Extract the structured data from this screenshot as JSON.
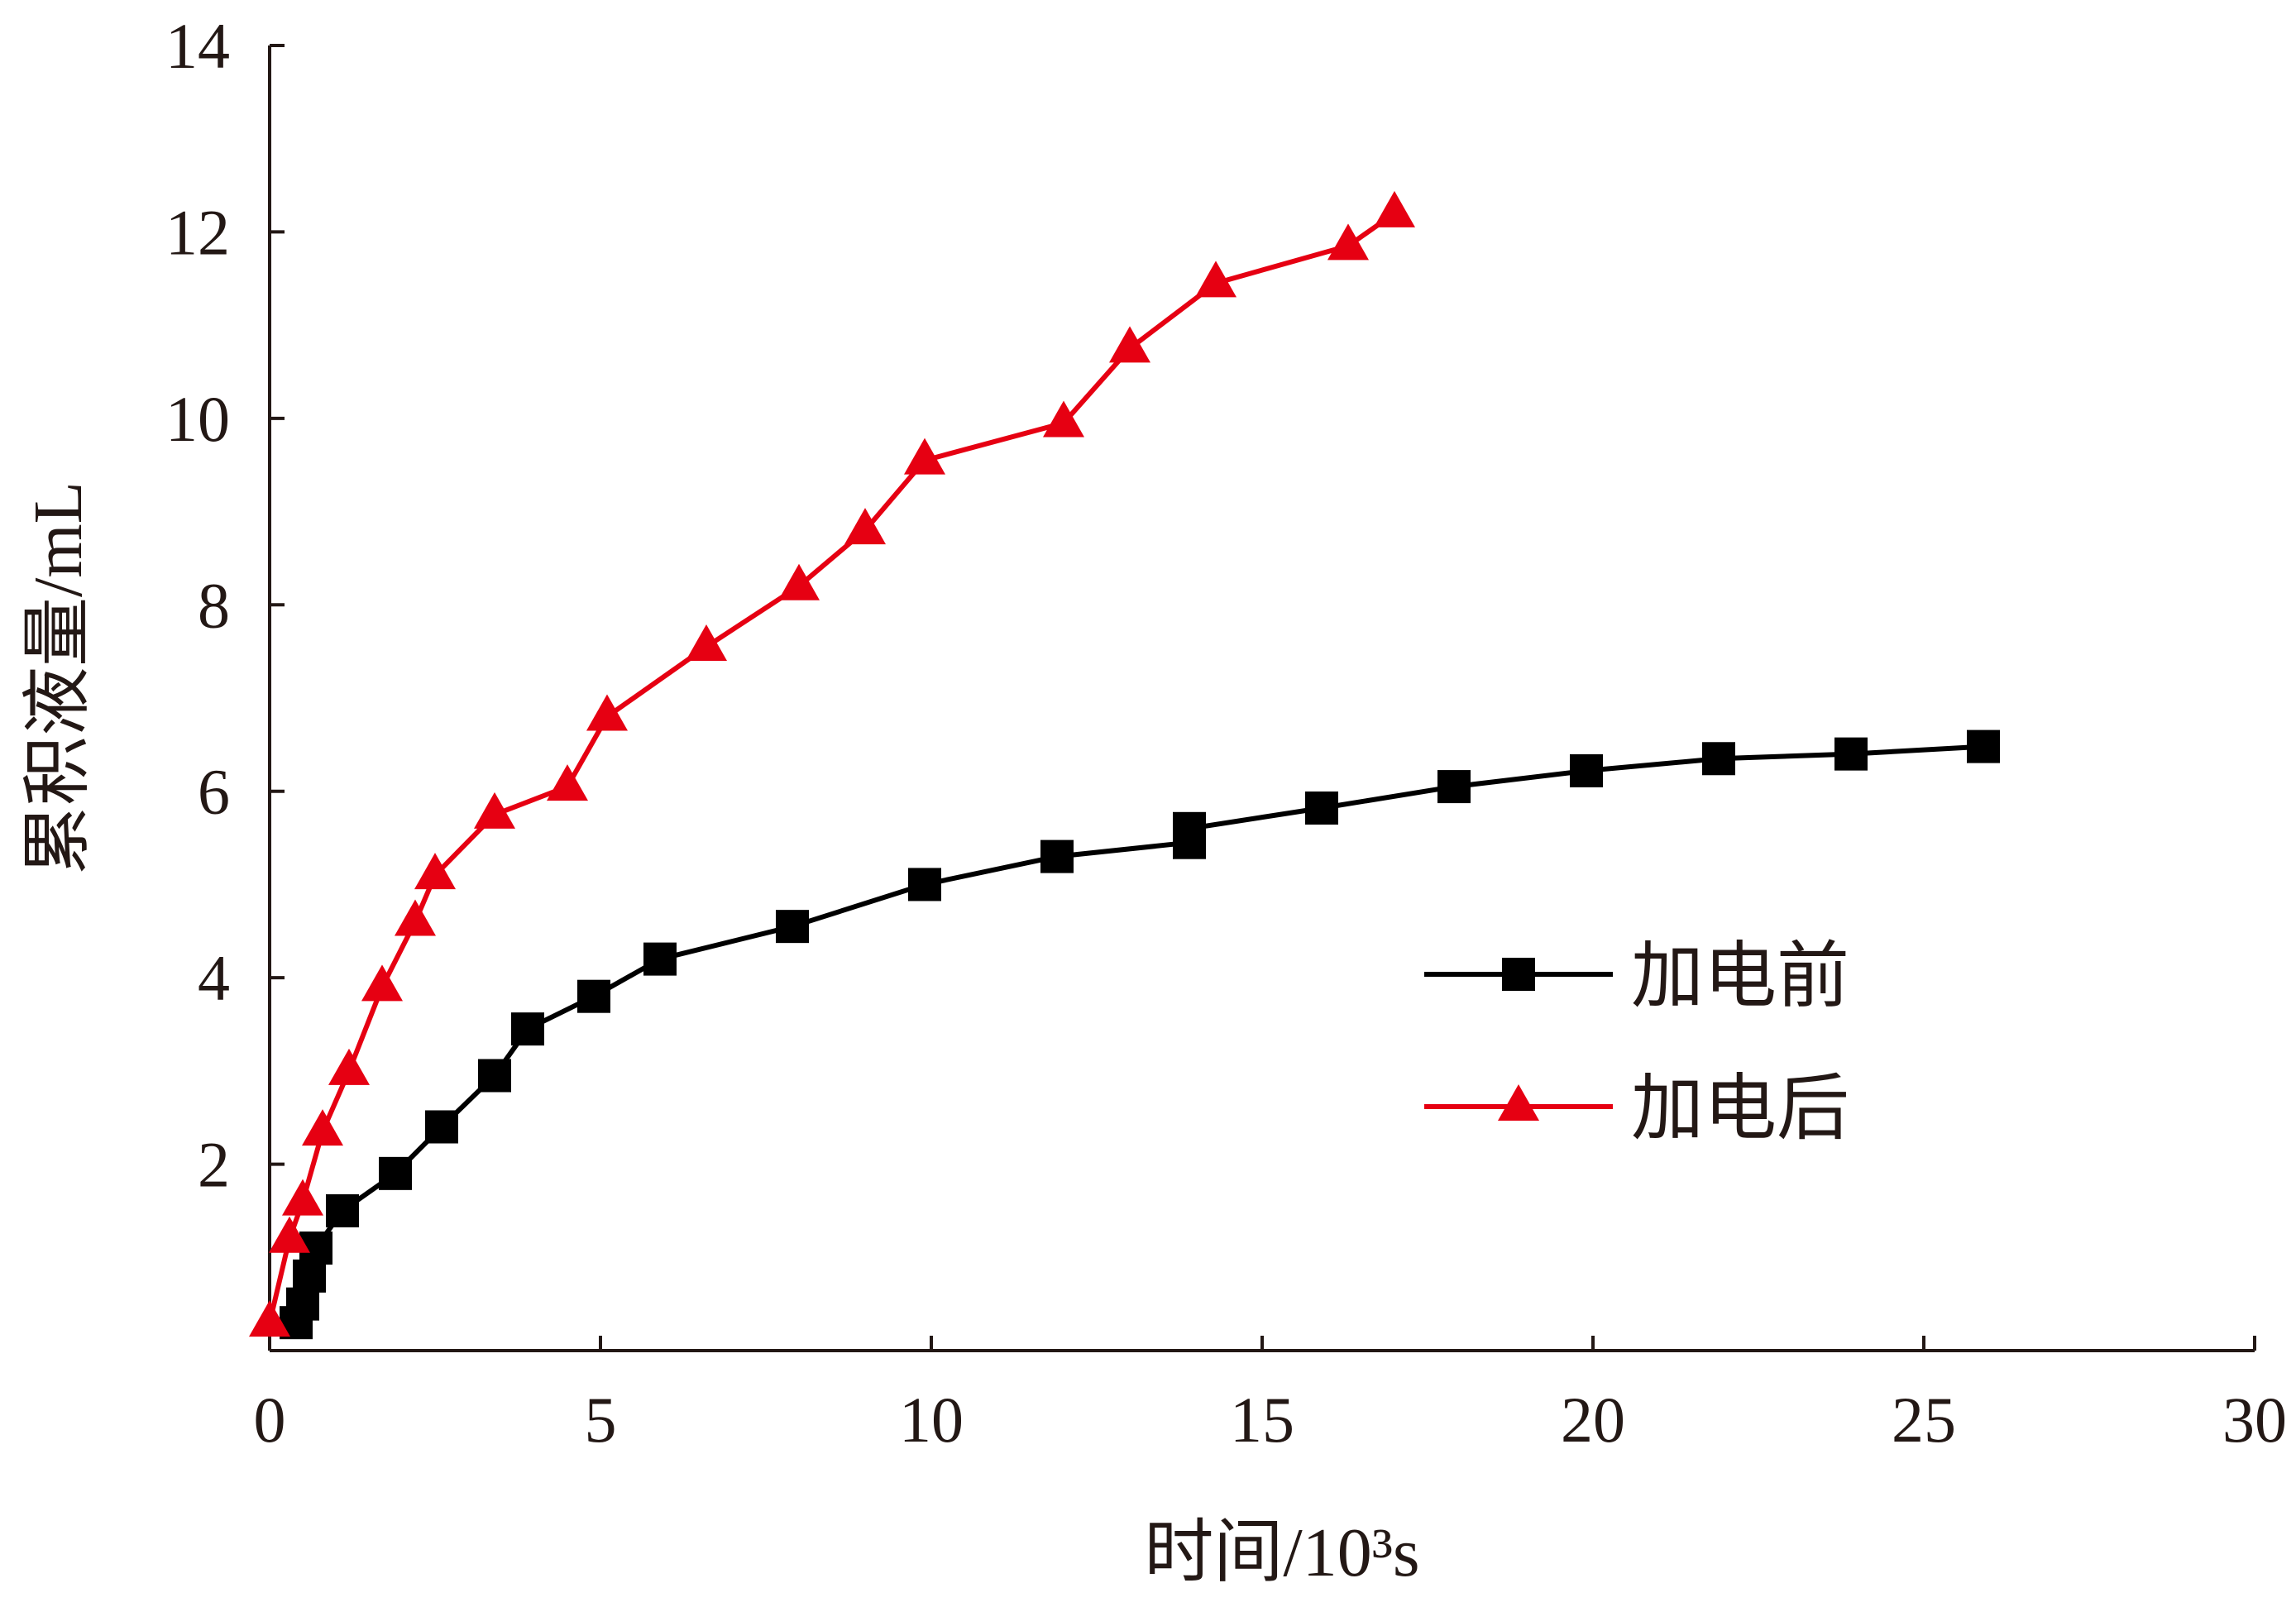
{
  "chart_data": {
    "type": "line",
    "title": "",
    "xlabel": "时间/10³s",
    "ylabel": "累积液量/mL",
    "xlim": [
      0,
      30
    ],
    "ylim": [
      0,
      14
    ],
    "x_ticks": [
      "0",
      "5",
      "10",
      "15",
      "20",
      "25",
      "30"
    ],
    "y_ticks": [
      "2",
      "4",
      "6",
      "8",
      "10",
      "12",
      "14"
    ],
    "grid": false,
    "legend_position": "right",
    "series": [
      {
        "name": "加电前",
        "color": "#000000",
        "marker": "square",
        "x": [
          0.4,
          0.5,
          0.6,
          0.7,
          1.1,
          1.9,
          2.6,
          3.4,
          3.9,
          4.9,
          5.9,
          7.9,
          9.9,
          11.9,
          13.9,
          13.9,
          15.9,
          17.9,
          19.9,
          21.9,
          23.9,
          25.9
        ],
        "y": [
          0.3,
          0.5,
          0.8,
          1.1,
          1.5,
          1.9,
          2.4,
          2.95,
          3.45,
          3.8,
          4.2,
          4.55,
          5.0,
          5.3,
          5.45,
          5.6,
          5.82,
          6.05,
          6.22,
          6.35,
          6.4,
          6.48
        ]
      },
      {
        "name": "加电后",
        "color": "#e60012",
        "marker": "triangle",
        "x": [
          0.0,
          0.3,
          0.5,
          0.8,
          1.2,
          1.7,
          2.2,
          2.5,
          3.4,
          4.5,
          5.1,
          6.6,
          8.0,
          9.0,
          9.9,
          12.0,
          13.0,
          14.3,
          16.3,
          17.0
        ],
        "y": [
          0.3,
          1.2,
          1.6,
          2.35,
          3.0,
          3.9,
          4.6,
          5.1,
          5.75,
          6.05,
          6.8,
          7.55,
          8.2,
          8.8,
          9.55,
          9.95,
          10.75,
          11.45,
          11.85,
          12.2
        ]
      }
    ]
  }
}
